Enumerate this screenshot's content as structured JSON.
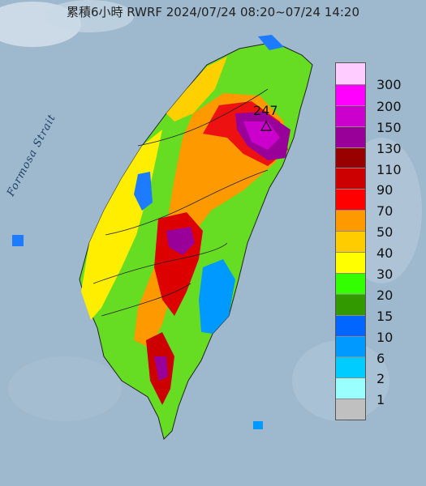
{
  "title": "累積6小時 RWRF 2024/07/24 08:20~07/24 14:20",
  "strait_label": "Formosa Strait",
  "peak_marker": {
    "value": "247",
    "icon": "triangle-icon"
  },
  "legend": {
    "colors": [
      "#ffccff",
      "#ff00ff",
      "#cc00cc",
      "#990099",
      "#990000",
      "#cc0000",
      "#ff0000",
      "#ff9900",
      "#ffcc00",
      "#ffff00",
      "#33ff00",
      "#339900",
      "#0066ff",
      "#0099ff",
      "#00ccff",
      "#99ffff",
      "#c0c0c0"
    ],
    "labels": [
      "300",
      "200",
      "150",
      "130",
      "110",
      "90",
      "70",
      "50",
      "40",
      "30",
      "20",
      "15",
      "10",
      "6",
      "2",
      "1"
    ]
  },
  "colors": {
    "sea": "#9db7cc",
    "background": "#e8e8e8"
  }
}
